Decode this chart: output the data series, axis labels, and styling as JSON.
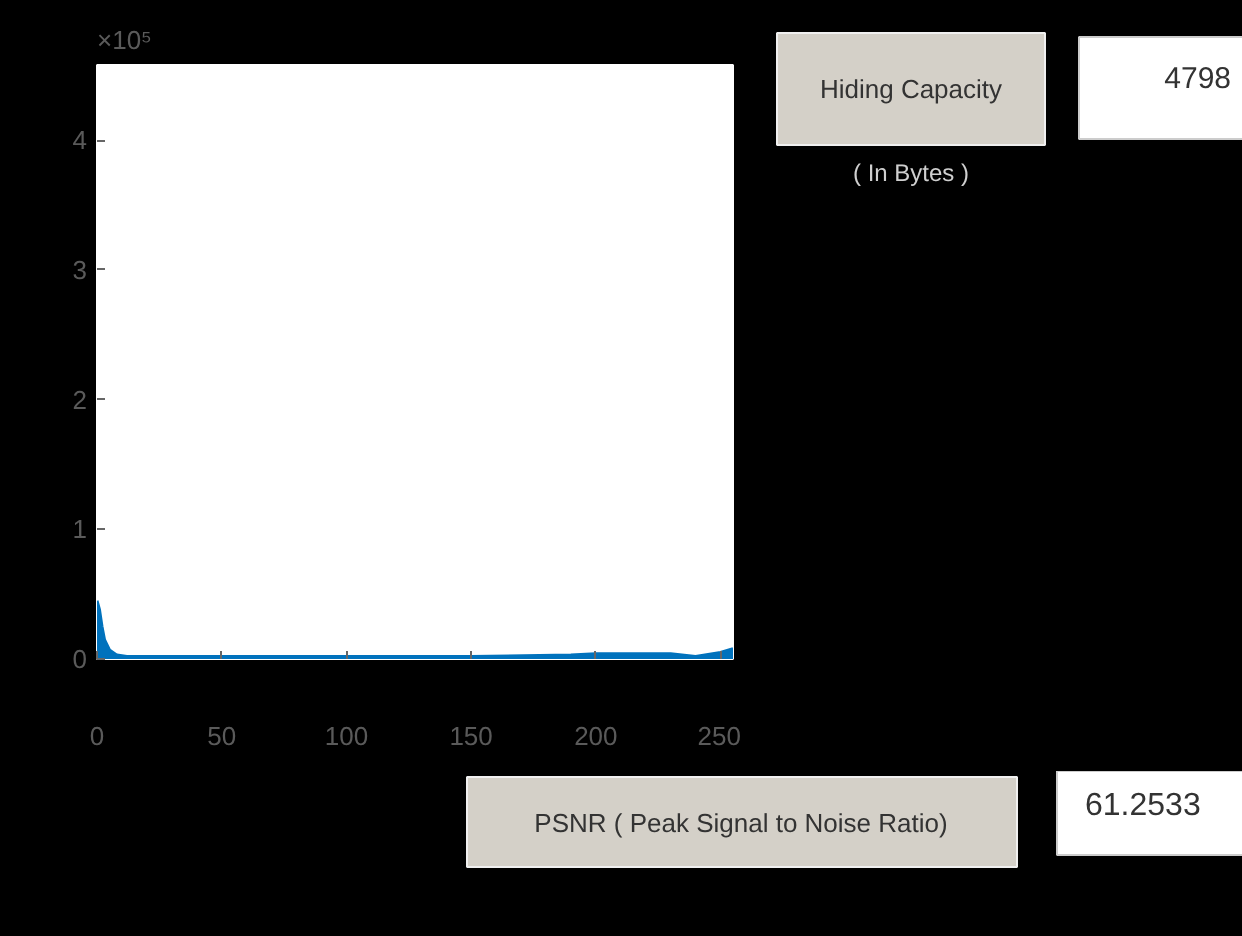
{
  "chart_data": {
    "type": "area",
    "x": [
      0,
      1,
      2,
      3,
      5,
      8,
      12,
      50,
      100,
      150,
      190,
      200,
      230,
      240,
      250,
      255
    ],
    "series": [
      {
        "color": "#0072bd",
        "values": [
          0.45,
          0.38,
          0.25,
          0.15,
          0.07,
          0.03,
          0.02,
          0.02,
          0.02,
          0.02,
          0.03,
          0.04,
          0.04,
          0.02,
          0.05,
          0.08
        ]
      }
    ],
    "xlim": [
      0,
      255
    ],
    "ylim": [
      0,
      4.58
    ],
    "xticks": [
      0,
      50,
      100,
      150,
      200,
      250
    ],
    "yticks": [
      0,
      1,
      2,
      3,
      4
    ],
    "grid": false,
    "annotations": [
      "×10⁵",
      "Hiding Capacity",
      "( In Bytes )",
      "4798",
      "PSNR ( Peak Signal to Noise Ratio)",
      "61.2533"
    ]
  }
}
